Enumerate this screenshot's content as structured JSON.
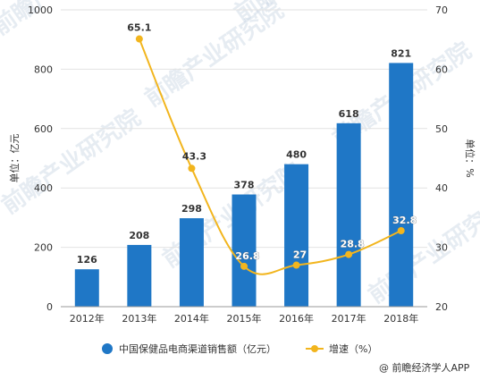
{
  "chart_data": {
    "type": "bar",
    "categories": [
      "2012年",
      "2013年",
      "2014年",
      "2015年",
      "2016年",
      "2017年",
      "2018年"
    ],
    "series": [
      {
        "name": "中国保健品电商渠道销售额（亿元）",
        "type": "bar",
        "axis": "left",
        "color": "#1f77c6",
        "values": [
          126,
          208,
          298,
          378,
          480,
          618,
          821
        ],
        "labels": [
          "126",
          "208",
          "298",
          "378",
          "480",
          "618",
          "821"
        ]
      },
      {
        "name": "增速（%）",
        "type": "line",
        "axis": "right",
        "color": "#f2b51d",
        "values": [
          null,
          65.1,
          43.3,
          26.8,
          27,
          28.8,
          32.8
        ],
        "labels": [
          "",
          "65.1",
          "43.3",
          "26.8",
          "27",
          "28.8",
          "32.8"
        ]
      }
    ],
    "ylabel": "单位：亿元",
    "y2label": "单位：%",
    "ylim": [
      0,
      1000
    ],
    "y2lim": [
      20,
      70
    ],
    "yticks": [
      "0",
      "200",
      "400",
      "600",
      "800",
      "1000"
    ],
    "y2ticks": [
      "20",
      "30",
      "40",
      "50",
      "60",
      "70"
    ],
    "grid": true,
    "legend": "bottom"
  },
  "credit": "@ 前瞻经济学人APP",
  "watermark": "前瞻产业研究院"
}
